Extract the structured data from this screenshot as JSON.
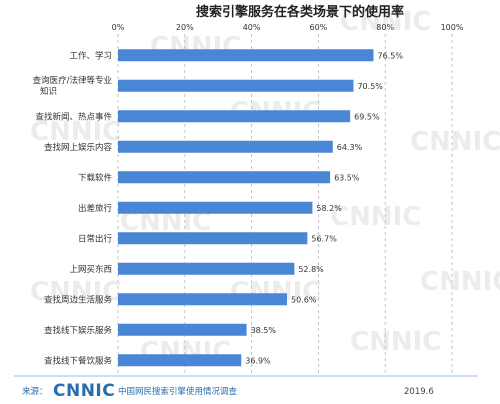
{
  "chart_data": {
    "type": "bar",
    "orientation": "horizontal",
    "title": "搜索引擎服务在各类场景下的使用率",
    "xlim": [
      0,
      100
    ],
    "xticks": [
      "0%",
      "20%",
      "40%",
      "60%",
      "80%",
      "100%"
    ],
    "grid": "dashed-vertical",
    "categories": [
      "工作、学习",
      "查询医疗/法律等专业知识",
      "查找新闻、热点事件",
      "查找网上娱乐内容",
      "下载软件",
      "出差旅行",
      "日常出行",
      "上网买东西",
      "查找周边生活服务",
      "查找线下娱乐服务",
      "查找线下餐饮服务"
    ],
    "category_lines": [
      [
        "工作、学习"
      ],
      [
        "查询医疗/法律等专业",
        "知识"
      ],
      [
        "查找新闻、热点事件"
      ],
      [
        "查找网上娱乐内容"
      ],
      [
        "下载软件"
      ],
      [
        "出差旅行"
      ],
      [
        "日常出行"
      ],
      [
        "上网买东西"
      ],
      [
        "查找周边生活服务"
      ],
      [
        "查找线下娱乐服务"
      ],
      [
        "查找线下餐饮服务"
      ]
    ],
    "values": [
      76.5,
      70.5,
      69.5,
      64.3,
      63.5,
      58.2,
      56.7,
      52.8,
      50.6,
      38.5,
      36.9
    ],
    "value_labels": [
      "76.5%",
      "70.5%",
      "69.5%",
      "64.3%",
      "63.5%",
      "58.2%",
      "56.7%",
      "52.8%",
      "50.6%",
      "38.5%",
      "36.9%"
    ],
    "bar_color": "#4a86d6"
  },
  "footer": {
    "source_prefix": "来源：",
    "logo": "CNNIC",
    "source_text": "中国网民搜索引擎使用情况调查",
    "date": "2019.6"
  },
  "watermark": "CNNIC"
}
